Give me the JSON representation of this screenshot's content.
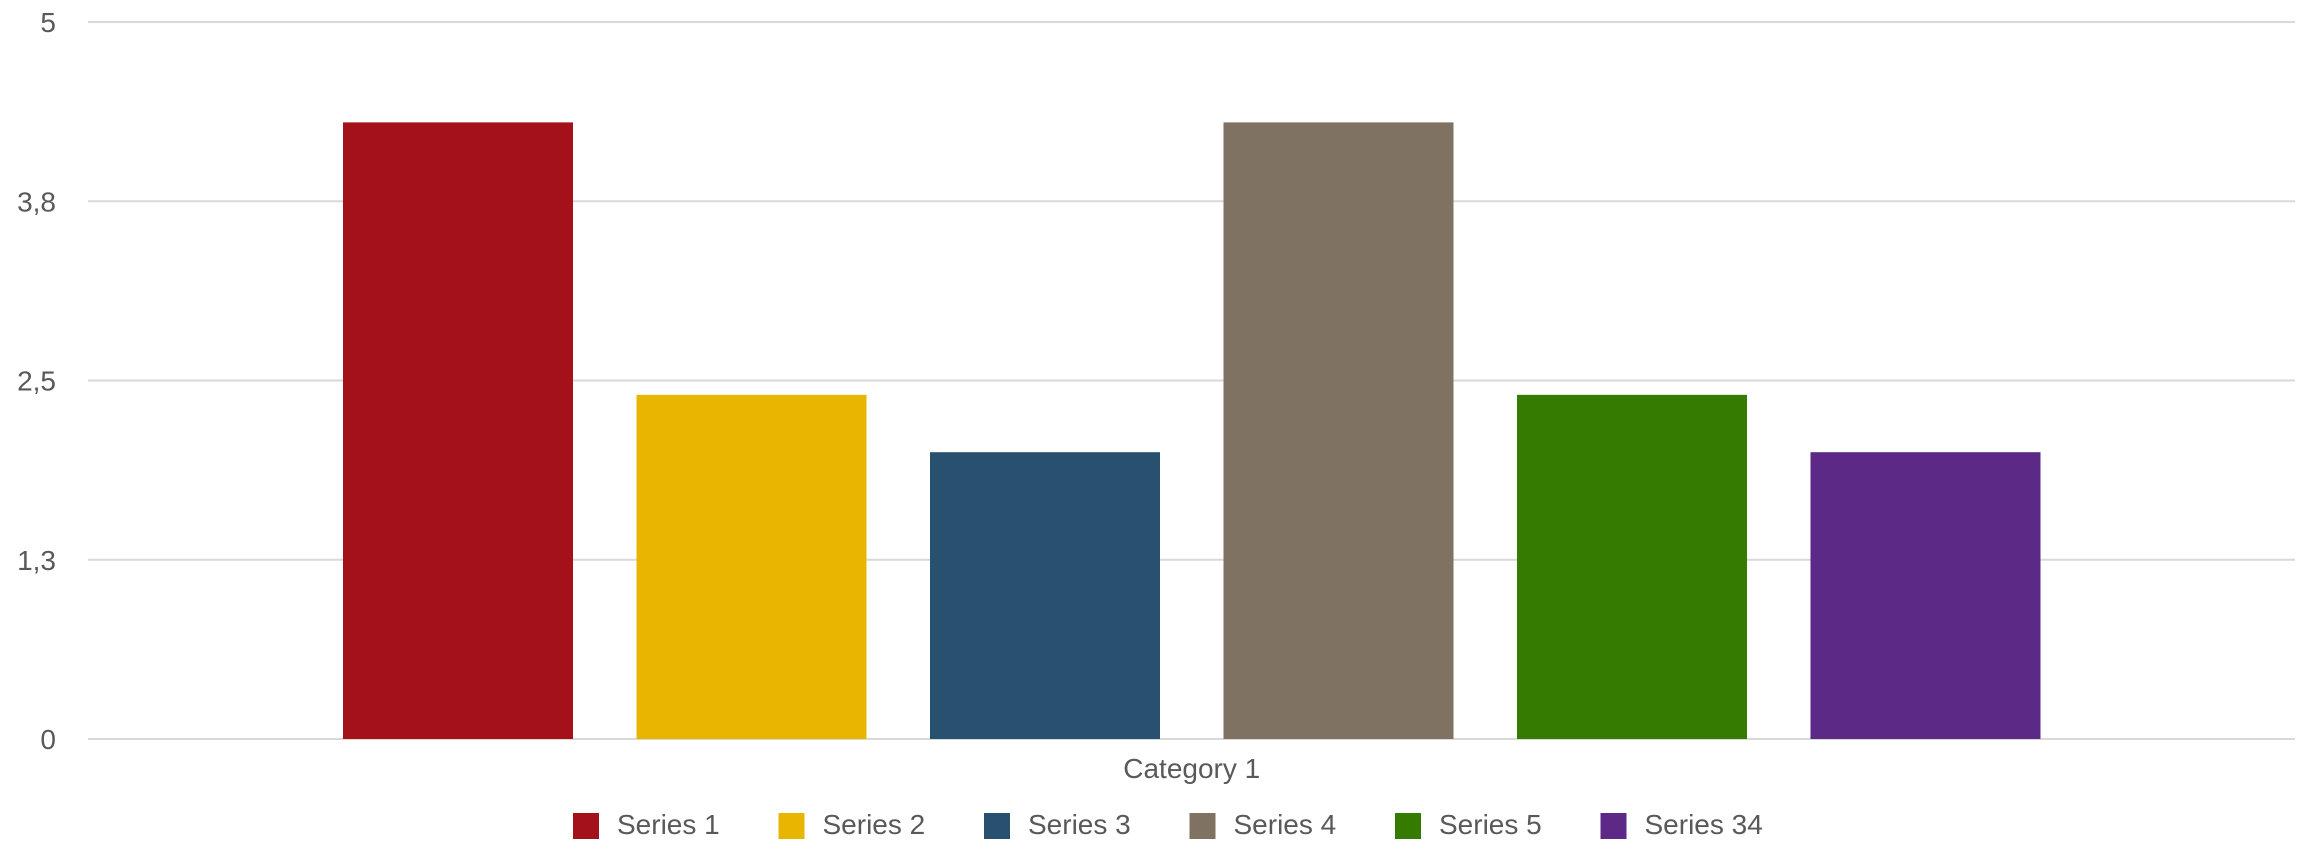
{
  "chart_data": {
    "type": "bar",
    "title": "",
    "xlabel": "",
    "ylabel": "",
    "categories": [
      "Category 1"
    ],
    "series": [
      {
        "name": "Series 1",
        "values": [
          4.3
        ],
        "color": "#a5111a"
      },
      {
        "name": "Series 2",
        "values": [
          2.4
        ],
        "color": "#e8b600"
      },
      {
        "name": "Series 3",
        "values": [
          2.0
        ],
        "color": "#28506f"
      },
      {
        "name": "Series 4",
        "values": [
          4.3
        ],
        "color": "#7f7262"
      },
      {
        "name": "Series 5",
        "values": [
          2.4
        ],
        "color": "#347b00"
      },
      {
        "name": "Series 34",
        "values": [
          2.0
        ],
        "color": "#5d2987"
      }
    ],
    "ylim": [
      0,
      5
    ],
    "yticks": [
      0,
      1.25,
      2.5,
      3.75,
      5
    ],
    "ytick_labels": [
      "0",
      "1,3",
      "2,5",
      "3,8",
      "5"
    ],
    "grid": true,
    "legend_position": "bottom"
  }
}
